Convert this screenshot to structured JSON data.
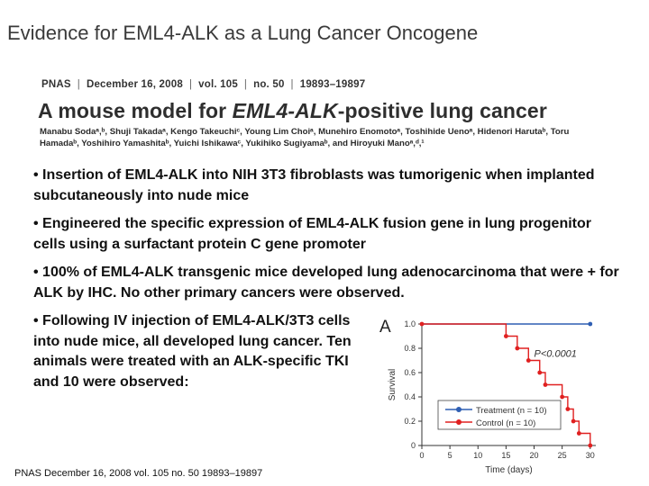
{
  "slide": {
    "title": "Evidence for EML4-ALK as a Lung Cancer Oncogene",
    "citation": "PNAS  December 16, 2008 vol. 105  no. 50  19893–19897"
  },
  "paper": {
    "journal": "PNAS",
    "date": "December 16, 2008",
    "volume": "vol. 105",
    "issue": "no. 50",
    "pages": "19893–19897",
    "title_prefix": "A mouse model for ",
    "title_italic": "EML4-ALK",
    "title_suffix": "-positive lung cancer",
    "authors": "Manabu Sodaᵃ,ᵇ, Shuji Takadaᵃ, Kengo Takeuchiᶜ, Young Lim Choiᵃ, Munehiro Enomotoᵃ, Toshihide Uenoᵃ, Hidenori Harutaᵇ, Toru Hamadaᵇ, Yoshihiro Yamashitaᵇ, Yuichi Ishikawaᶜ, Yukihiko Sugiyamaᵇ, and Hiroyuki Manoᵃ,ᵈ,¹"
  },
  "bullets": [
    "• Insertion of EML4-ALK into NIH 3T3 fibroblasts was tumorigenic when implanted subcutaneously into nude mice",
    "•  Engineered the specific expression of EML4-ALK fusion gene in lung progenitor cells using a surfactant protein C gene promoter",
    "•  100% of EML4-ALK transgenic mice developed lung adenocarcinoma that were + for ALK by IHC.  No other primary cancers were observed.",
    "•  Following IV injection of EML4-ALK/3T3 cells into nude mice, all developed lung cancer.  Ten animals were treated with an ALK-specific TKI and 10 were observed:"
  ],
  "chart_data": {
    "type": "line",
    "panel_label": "A",
    "xlabel": "Time (days)",
    "ylabel": "Survival",
    "xlim": [
      0,
      31
    ],
    "ylim": [
      0,
      1.0
    ],
    "x_ticks": [
      "0",
      "5",
      "10",
      "15",
      "20",
      "25",
      "30"
    ],
    "y_ticks": [
      "0",
      "0.2",
      "0.4",
      "0.6",
      "0.8",
      "1.0"
    ],
    "p_value": "P<0.0001",
    "legend_position": "bottom-left",
    "series": [
      {
        "name": "Treatment (n = 10)",
        "color": "#2f5fb3",
        "step_points": [
          [
            0,
            1.0
          ],
          [
            30,
            1.0
          ]
        ]
      },
      {
        "name": "Control (n = 10)",
        "color": "#e02020",
        "step_points": [
          [
            0,
            1.0
          ],
          [
            15,
            0.9
          ],
          [
            17,
            0.8
          ],
          [
            19,
            0.7
          ],
          [
            21,
            0.6
          ],
          [
            22,
            0.5
          ],
          [
            25,
            0.4
          ],
          [
            26,
            0.3
          ],
          [
            27,
            0.2
          ],
          [
            28,
            0.1
          ],
          [
            30,
            0.0
          ]
        ]
      }
    ]
  }
}
